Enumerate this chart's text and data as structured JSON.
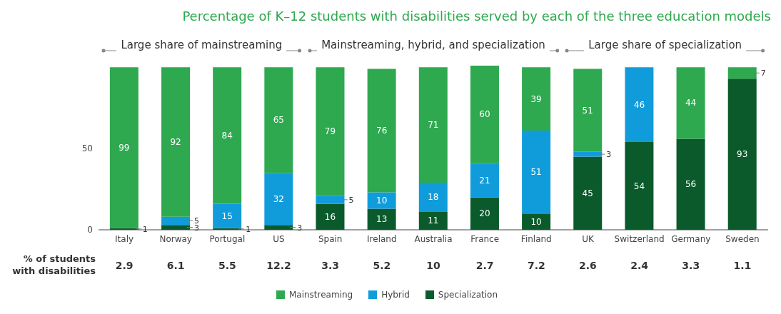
{
  "chart_data": {
    "type": "bar",
    "title": "Percentage of K–12 students with disabilities served by each of the three education models",
    "categories": [
      "Italy",
      "Norway",
      "Portugal",
      "US",
      "Spain",
      "Ireland",
      "Australia",
      "France",
      "Finland",
      "UK",
      "Switzerland",
      "Germany",
      "Sweden"
    ],
    "stacked": true,
    "series": [
      {
        "name": "Specialization",
        "color": "#0b5a2c",
        "values": [
          1,
          3,
          1,
          3,
          16,
          13,
          11,
          20,
          10,
          45,
          54,
          56,
          93
        ],
        "value_labels": [
          "1",
          "3",
          "1",
          "3",
          "16",
          "13",
          "11",
          "20",
          "10",
          "45",
          "54",
          "56",
          "93"
        ]
      },
      {
        "name": "Hybrid",
        "color": "#109cdb",
        "values": [
          0,
          5,
          15,
          32,
          5,
          10,
          18,
          21,
          51,
          3,
          46,
          0,
          0
        ],
        "value_labels": [
          null,
          "5",
          "15",
          "32",
          "5",
          "10",
          "18",
          "21",
          "51",
          "3",
          "46",
          null,
          null
        ]
      },
      {
        "name": "Mainstreaming",
        "color": "#2ea94f",
        "values": [
          99,
          92,
          84,
          65,
          79,
          76,
          71,
          60,
          39,
          51,
          0,
          44,
          7
        ],
        "value_labels": [
          "99",
          "92",
          "84",
          "65",
          "79",
          "76",
          "71",
          "60",
          "39",
          "51",
          null,
          "44",
          "7"
        ]
      }
    ],
    "ylim": [
      0,
      101
    ],
    "yticks": [
      0,
      50
    ],
    "legend": "bottom",
    "annotations": [
      "Large share of mainstreaming",
      "Mainstreaming, hybrid, and specialization",
      "Large share of specialization",
      "% of students with disabilities",
      "2.9",
      "6.1",
      "5.5",
      "12.2",
      "3.3",
      "5.2",
      "10",
      "2.7",
      "7.2",
      "2.6",
      "2.4",
      "3.3",
      "1.1"
    ]
  }
}
